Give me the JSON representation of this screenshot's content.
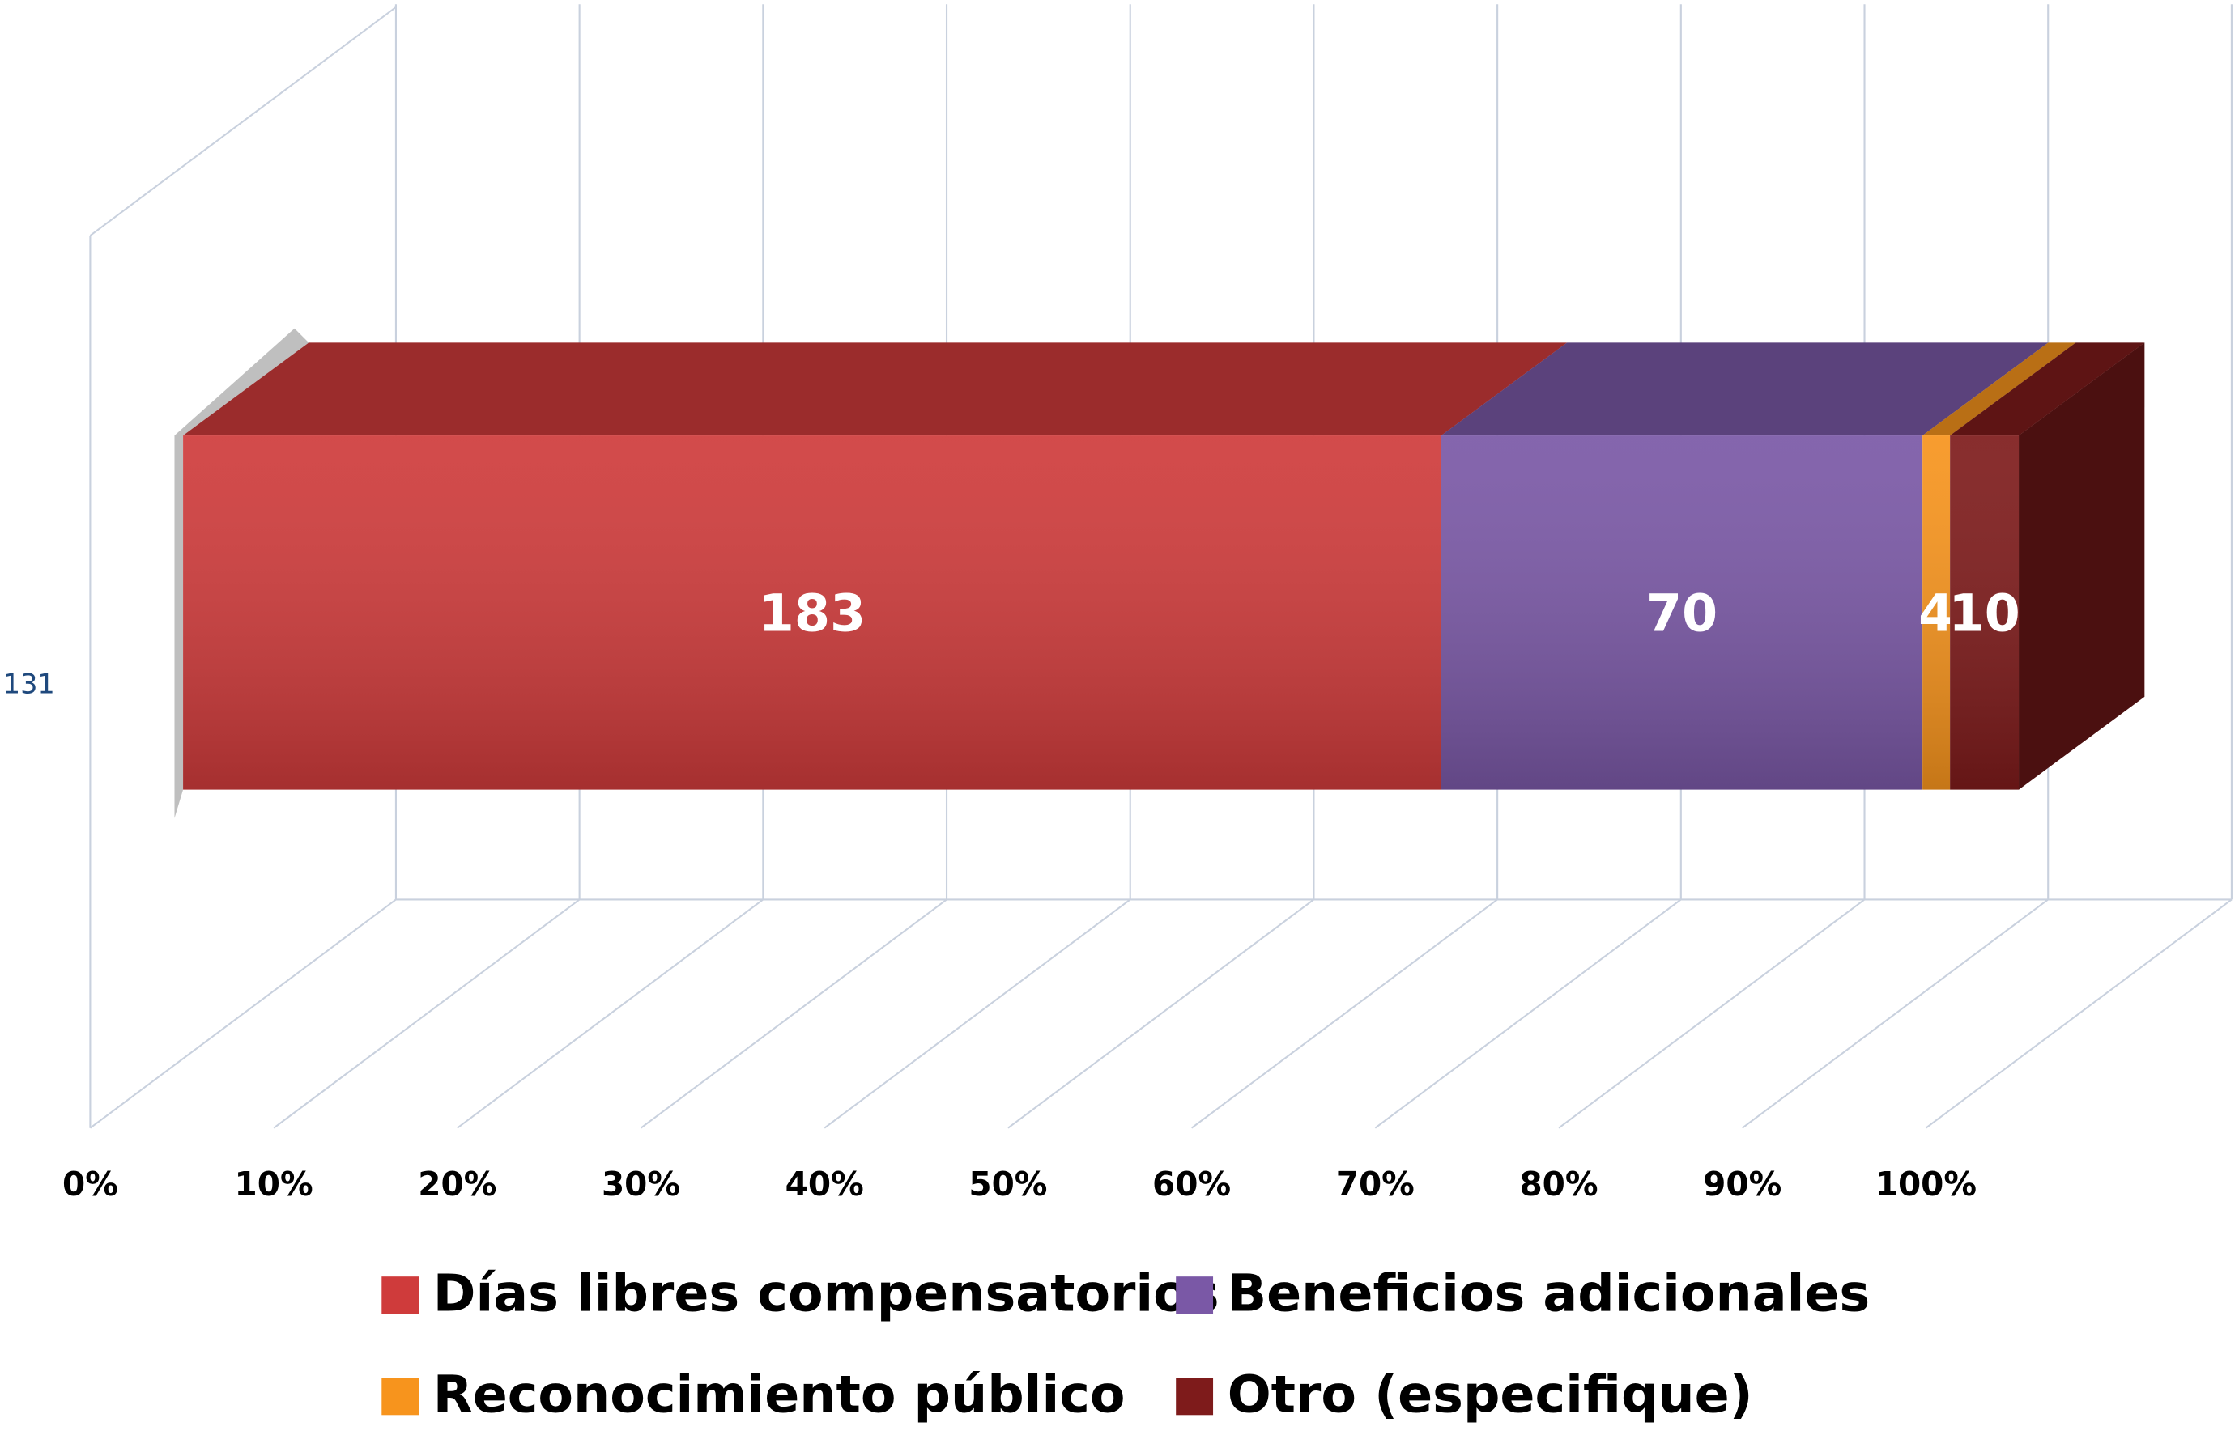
{
  "chart_data": {
    "type": "bar3d",
    "orientation": "horizontal",
    "stacking": "percent",
    "categories": [
      "131"
    ],
    "series": [
      {
        "name": "Días libres compensatorios",
        "color": "#cf3b3b",
        "values": [
          183
        ]
      },
      {
        "name": "Beneficios adicionales",
        "color": "#7a58a6",
        "values": [
          70
        ]
      },
      {
        "name": "Reconocimiento público",
        "color": "#f7941d",
        "values": [
          4
        ]
      },
      {
        "name": "Otro (especifique)",
        "color": "#7e1b1b",
        "values": [
          10
        ]
      }
    ],
    "xlim": [
      0,
      100
    ],
    "xticks": [
      {
        "value": 0,
        "label": "0%"
      },
      {
        "value": 10,
        "label": "10%"
      },
      {
        "value": 20,
        "label": "20%"
      },
      {
        "value": 30,
        "label": "30%"
      },
      {
        "value": 40,
        "label": "40%"
      },
      {
        "value": 50,
        "label": "50%"
      },
      {
        "value": 60,
        "label": "60%"
      },
      {
        "value": 70,
        "label": "70%"
      },
      {
        "value": 80,
        "label": "80%"
      },
      {
        "value": 90,
        "label": "90%"
      },
      {
        "value": 100,
        "label": "100%"
      }
    ],
    "grid": true,
    "legend": "bottom"
  }
}
